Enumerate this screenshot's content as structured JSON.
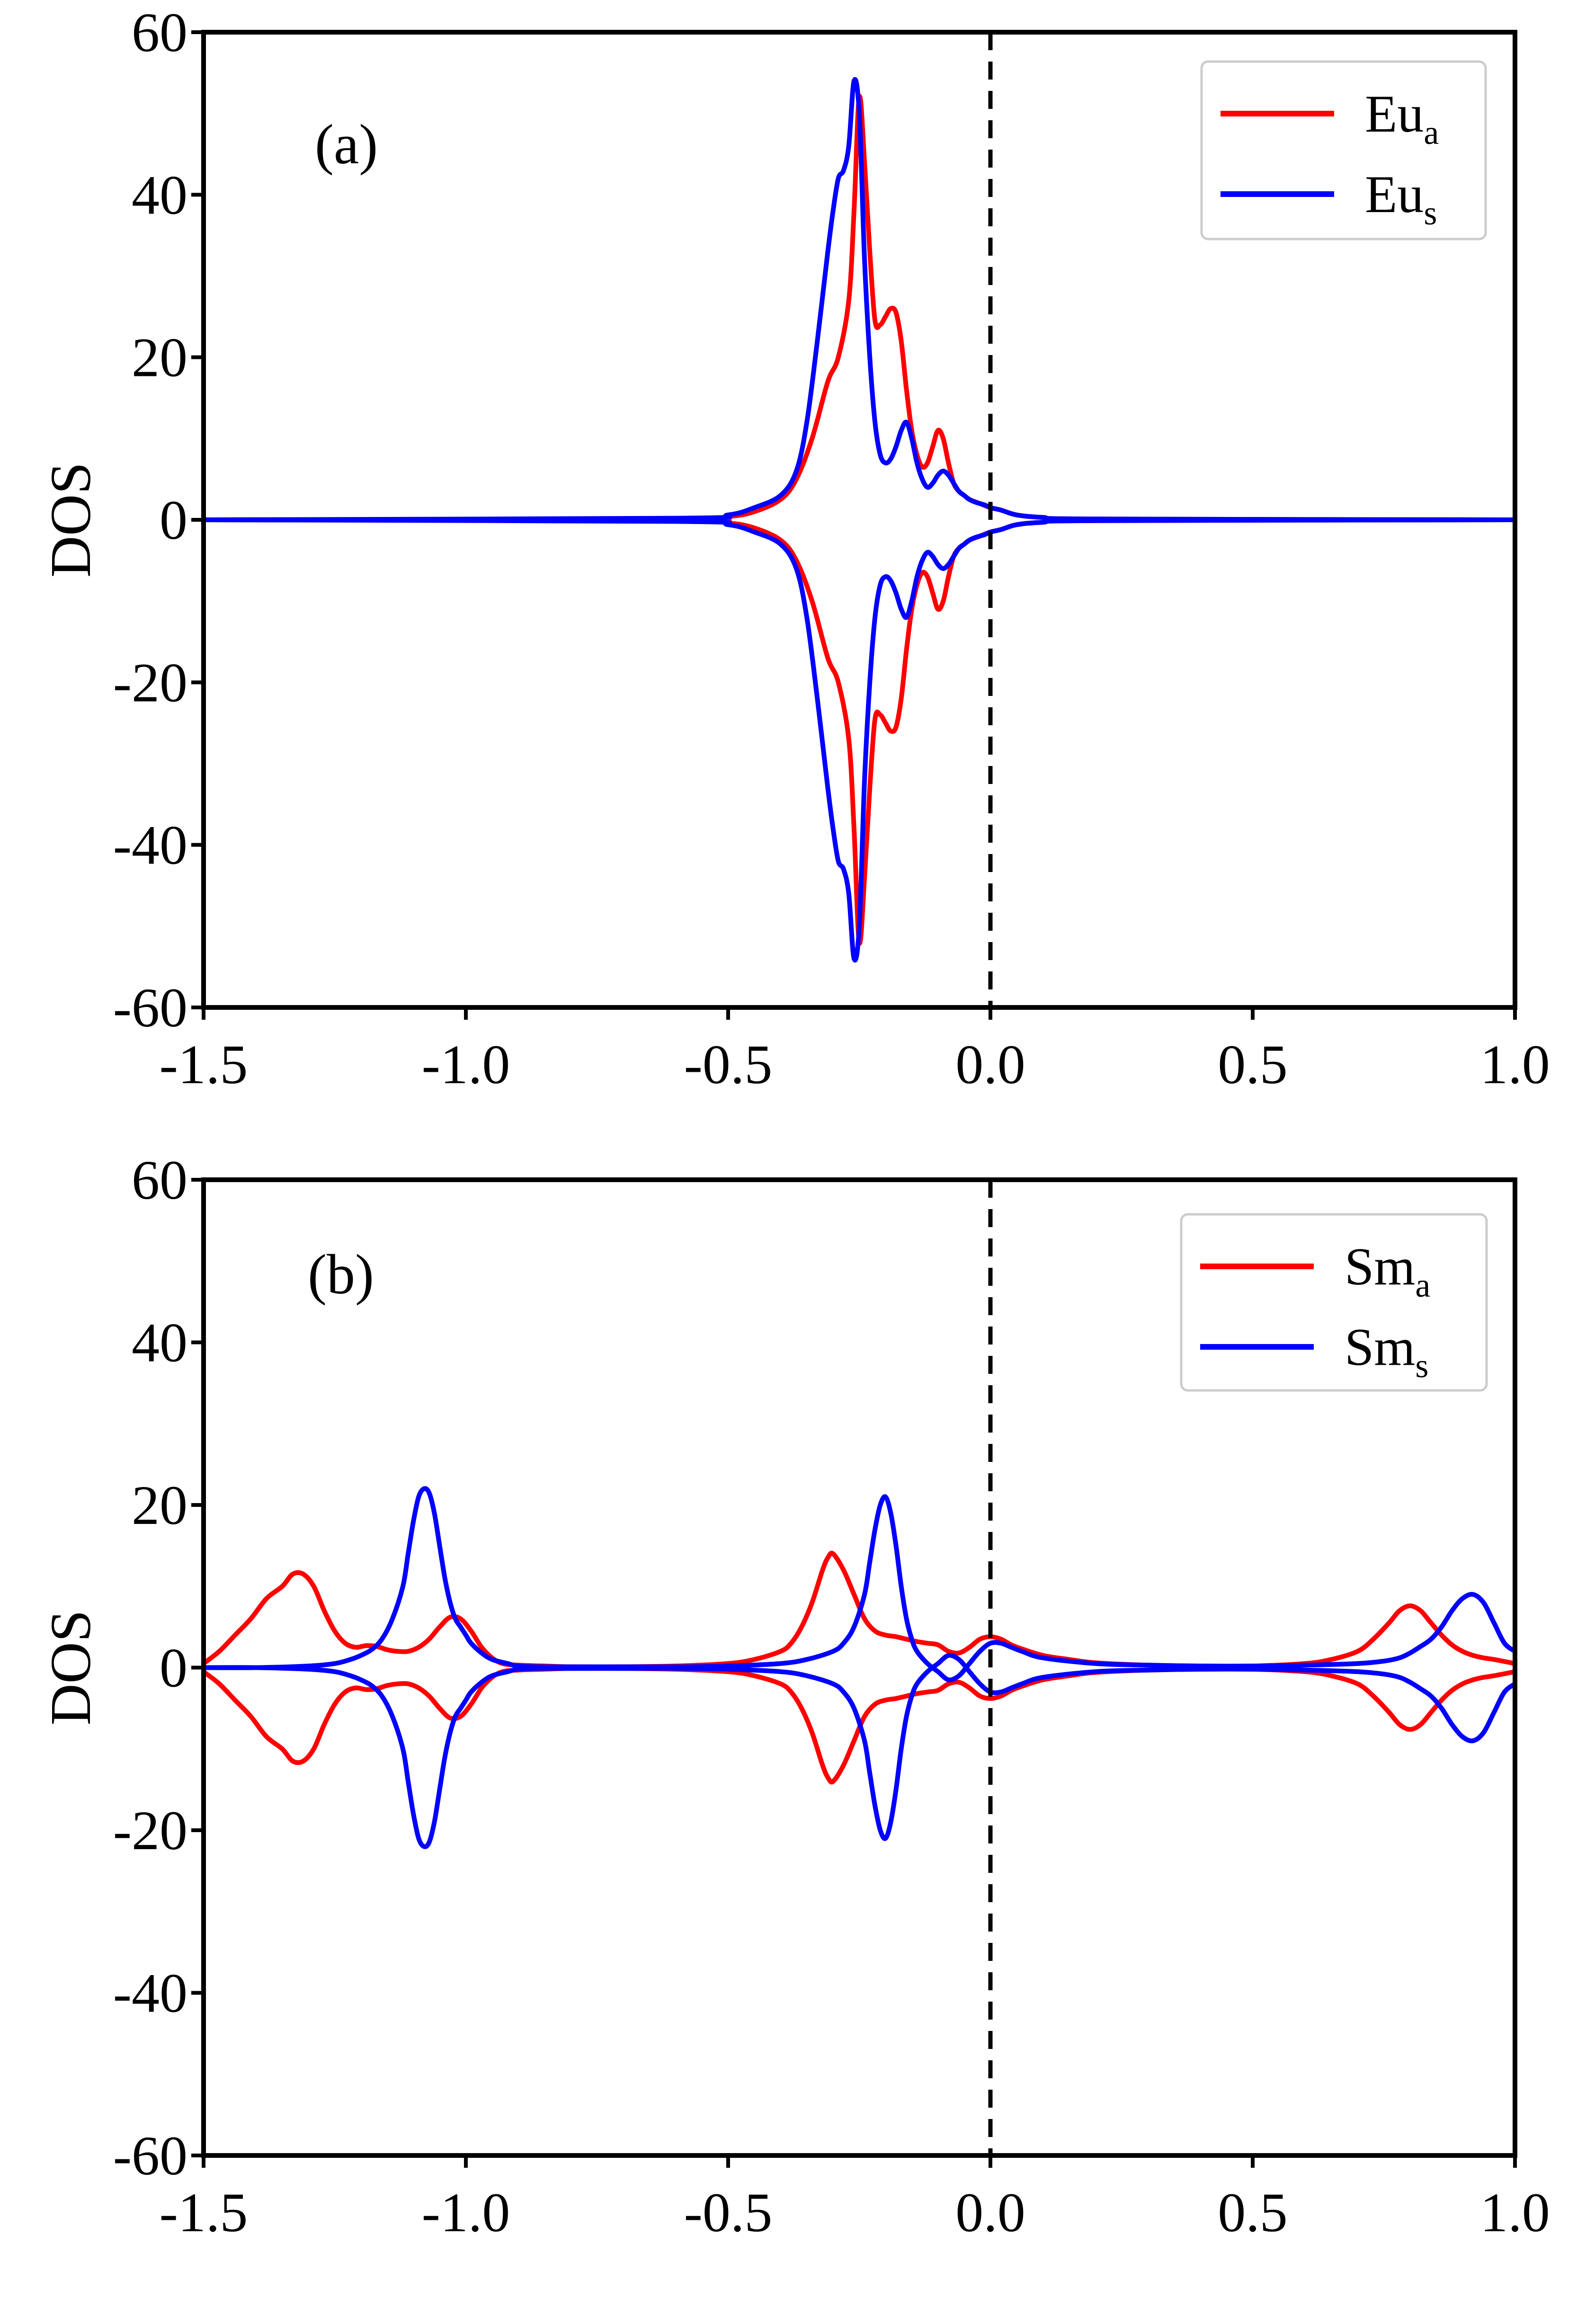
{
  "chart_data": [
    {
      "type": "line",
      "panel_label": "(a)",
      "xlabel": "",
      "ylabel": "DOS",
      "xlim": [
        -1.5,
        1.0
      ],
      "ylim": [
        -60,
        60
      ],
      "x_ticks": [
        -1.5,
        -1.0,
        -0.5,
        0.0,
        0.5,
        1.0
      ],
      "x_tick_labels": [
        "-1.5",
        "-1.0",
        "-0.5",
        "0.0",
        "0.5",
        "1.0"
      ],
      "y_ticks": [
        -60,
        -40,
        -20,
        0,
        20,
        40,
        60
      ],
      "y_tick_labels": [
        "-60",
        "-40",
        "-20",
        "0",
        "20",
        "40",
        "60"
      ],
      "reference_line": {
        "x": 0.0,
        "style": "dashed",
        "color": "#000000"
      },
      "legend_location": "top-right",
      "mirrored_spin_down": true,
      "series": [
        {
          "name": "Eu",
          "subscript": "a",
          "color": "#ff0000",
          "x": [
            -1.5,
            -0.6,
            -0.5,
            -0.45,
            -0.4,
            -0.37,
            -0.34,
            -0.31,
            -0.29,
            -0.27,
            -0.26,
            -0.25,
            -0.24,
            -0.23,
            -0.22,
            -0.21,
            -0.2,
            -0.19,
            -0.18,
            -0.17,
            -0.16,
            -0.15,
            -0.14,
            -0.13,
            -0.12,
            -0.11,
            -0.1,
            -0.09,
            -0.08,
            -0.07,
            -0.06,
            -0.05,
            -0.04,
            -0.02,
            0.0,
            0.02,
            0.05,
            0.1,
            0.2,
            1.0
          ],
          "y": [
            0,
            0.1,
            0.4,
            1,
            2.5,
            5,
            10,
            17,
            20,
            27,
            38,
            52,
            44,
            33,
            24.5,
            24,
            25,
            26,
            25.5,
            22,
            16,
            11,
            8,
            6.5,
            7,
            9,
            11,
            10,
            7,
            4.5,
            3.5,
            3,
            2.5,
            2,
            1.5,
            1.2,
            0.6,
            0.3,
            0.1,
            0
          ]
        },
        {
          "name": "Eu",
          "subscript": "s",
          "color": "#0000ff",
          "x": [
            -1.5,
            -0.6,
            -0.5,
            -0.45,
            -0.4,
            -0.37,
            -0.35,
            -0.33,
            -0.31,
            -0.3,
            -0.29,
            -0.28,
            -0.27,
            -0.26,
            -0.25,
            -0.24,
            -0.23,
            -0.22,
            -0.21,
            -0.2,
            -0.19,
            -0.18,
            -0.17,
            -0.16,
            -0.15,
            -0.14,
            -0.13,
            -0.12,
            -0.11,
            -0.1,
            -0.09,
            -0.08,
            -0.07,
            -0.06,
            -0.05,
            -0.04,
            -0.03,
            -0.02,
            -0.01,
            0.0,
            0.02,
            0.05,
            0.1,
            0.2,
            1.0
          ],
          "y": [
            0,
            0.2,
            0.6,
            1.5,
            3,
            6,
            12,
            22,
            33,
            38,
            42,
            43,
            46,
            54,
            50,
            32,
            20,
            12,
            8,
            7,
            7.5,
            9,
            11,
            12,
            10,
            7,
            5,
            4,
            4.5,
            5.5,
            6,
            5.5,
            4.5,
            3.5,
            3,
            2.5,
            2.2,
            2,
            1.8,
            1.5,
            1.2,
            0.6,
            0.3,
            0.1,
            0
          ]
        }
      ]
    },
    {
      "type": "line",
      "panel_label": "(b)",
      "xlabel": "",
      "ylabel": "DOS",
      "xlim": [
        -1.5,
        1.0
      ],
      "ylim": [
        -60,
        60
      ],
      "x_ticks": [
        -1.5,
        -1.0,
        -0.5,
        0.0,
        0.5,
        1.0
      ],
      "x_tick_labels": [
        "-1.5",
        "-1.0",
        "-0.5",
        "0.0",
        "0.5",
        "1.0"
      ],
      "y_ticks": [
        -60,
        -40,
        -20,
        0,
        20,
        40,
        60
      ],
      "y_tick_labels": [
        "-60",
        "-40",
        "-20",
        "0",
        "20",
        "40",
        "60"
      ],
      "reference_line": {
        "x": 0.0,
        "style": "dashed",
        "color": "#000000"
      },
      "legend_location": "top-right",
      "mirrored_spin_down": true,
      "series": [
        {
          "name": "Sm",
          "subscript": "a",
          "color": "#ff0000",
          "x": [
            -1.5,
            -1.47,
            -1.44,
            -1.41,
            -1.38,
            -1.35,
            -1.33,
            -1.31,
            -1.29,
            -1.27,
            -1.25,
            -1.23,
            -1.21,
            -1.19,
            -1.17,
            -1.15,
            -1.13,
            -1.11,
            -1.09,
            -1.07,
            -1.05,
            -1.03,
            -1.01,
            -0.99,
            -0.97,
            -0.95,
            -0.93,
            -0.9,
            -0.85,
            -0.8,
            -0.7,
            -0.6,
            -0.5,
            -0.45,
            -0.4,
            -0.38,
            -0.36,
            -0.34,
            -0.32,
            -0.31,
            -0.3,
            -0.28,
            -0.26,
            -0.24,
            -0.22,
            -0.2,
            -0.18,
            -0.16,
            -0.14,
            -0.12,
            -0.1,
            -0.08,
            -0.06,
            -0.04,
            -0.02,
            0.0,
            0.02,
            0.04,
            0.06,
            0.1,
            0.15,
            0.2,
            0.3,
            0.4,
            0.5,
            0.6,
            0.65,
            0.7,
            0.73,
            0.76,
            0.78,
            0.8,
            0.82,
            0.84,
            0.86,
            0.88,
            0.9,
            0.92,
            0.94,
            0.96,
            1.0
          ],
          "y": [
            0.5,
            2,
            4,
            6,
            8.5,
            10,
            11.5,
            11.5,
            10,
            7,
            4.5,
            3,
            2.5,
            2.7,
            2.6,
            2.2,
            2,
            2,
            2.5,
            3.5,
            5,
            6.2,
            6,
            4.5,
            2.5,
            1.2,
            0.5,
            0.3,
            0.2,
            0.1,
            0.1,
            0.2,
            0.5,
            1,
            2,
            3,
            5,
            8,
            12,
            13.5,
            14,
            12,
            9,
            6,
            4.5,
            4,
            3.8,
            3.5,
            3.2,
            3,
            2.8,
            2,
            1.8,
            2.5,
            3.5,
            3.8,
            3.5,
            2.8,
            2.3,
            1.5,
            1,
            0.6,
            0.3,
            0.2,
            0.2,
            0.5,
            1,
            2,
            3.5,
            5.5,
            7,
            7.6,
            7,
            5.5,
            4,
            2.8,
            2,
            1.5,
            1.2,
            1,
            0.5
          ]
        },
        {
          "name": "Sm",
          "subscript": "s",
          "color": "#0000ff",
          "x": [
            -1.5,
            -1.4,
            -1.3,
            -1.25,
            -1.22,
            -1.2,
            -1.18,
            -1.16,
            -1.14,
            -1.12,
            -1.11,
            -1.1,
            -1.09,
            -1.08,
            -1.07,
            -1.06,
            -1.05,
            -1.04,
            -1.03,
            -1.02,
            -1.01,
            -1.0,
            -0.99,
            -0.97,
            -0.95,
            -0.92,
            -0.9,
            -0.85,
            -0.8,
            -0.7,
            -0.6,
            -0.5,
            -0.4,
            -0.35,
            -0.3,
            -0.28,
            -0.26,
            -0.24,
            -0.23,
            -0.22,
            -0.21,
            -0.2,
            -0.19,
            -0.18,
            -0.17,
            -0.16,
            -0.15,
            -0.14,
            -0.12,
            -0.1,
            -0.08,
            -0.06,
            -0.04,
            -0.02,
            0.0,
            0.02,
            0.04,
            0.06,
            0.1,
            0.2,
            0.3,
            0.4,
            0.5,
            0.6,
            0.7,
            0.75,
            0.78,
            0.8,
            0.82,
            0.84,
            0.86,
            0.88,
            0.9,
            0.92,
            0.94,
            0.96,
            0.98,
            1.0
          ],
          "y": [
            0,
            0,
            0.2,
            0.5,
            1,
            1.5,
            2.2,
            3.5,
            6,
            10,
            14,
            18,
            21,
            22,
            21.5,
            19,
            15,
            11,
            8,
            6,
            5,
            4,
            3,
            1.8,
            1,
            0.5,
            0.2,
            0.1,
            0.1,
            0.1,
            0.1,
            0.2,
            0.5,
            1,
            2,
            3,
            5,
            9,
            13,
            17,
            20,
            21,
            19,
            15,
            10,
            6,
            3.5,
            2,
            0.5,
            -0.5,
            -1.5,
            -1,
            0.5,
            2,
            3,
            3,
            2.5,
            2,
            1.2,
            0.5,
            0.3,
            0.2,
            0.2,
            0.3,
            0.5,
            0.8,
            1.2,
            1.8,
            2.6,
            3.5,
            5,
            7,
            8.5,
            9,
            8,
            5.5,
            3,
            2
          ]
        }
      ]
    }
  ]
}
